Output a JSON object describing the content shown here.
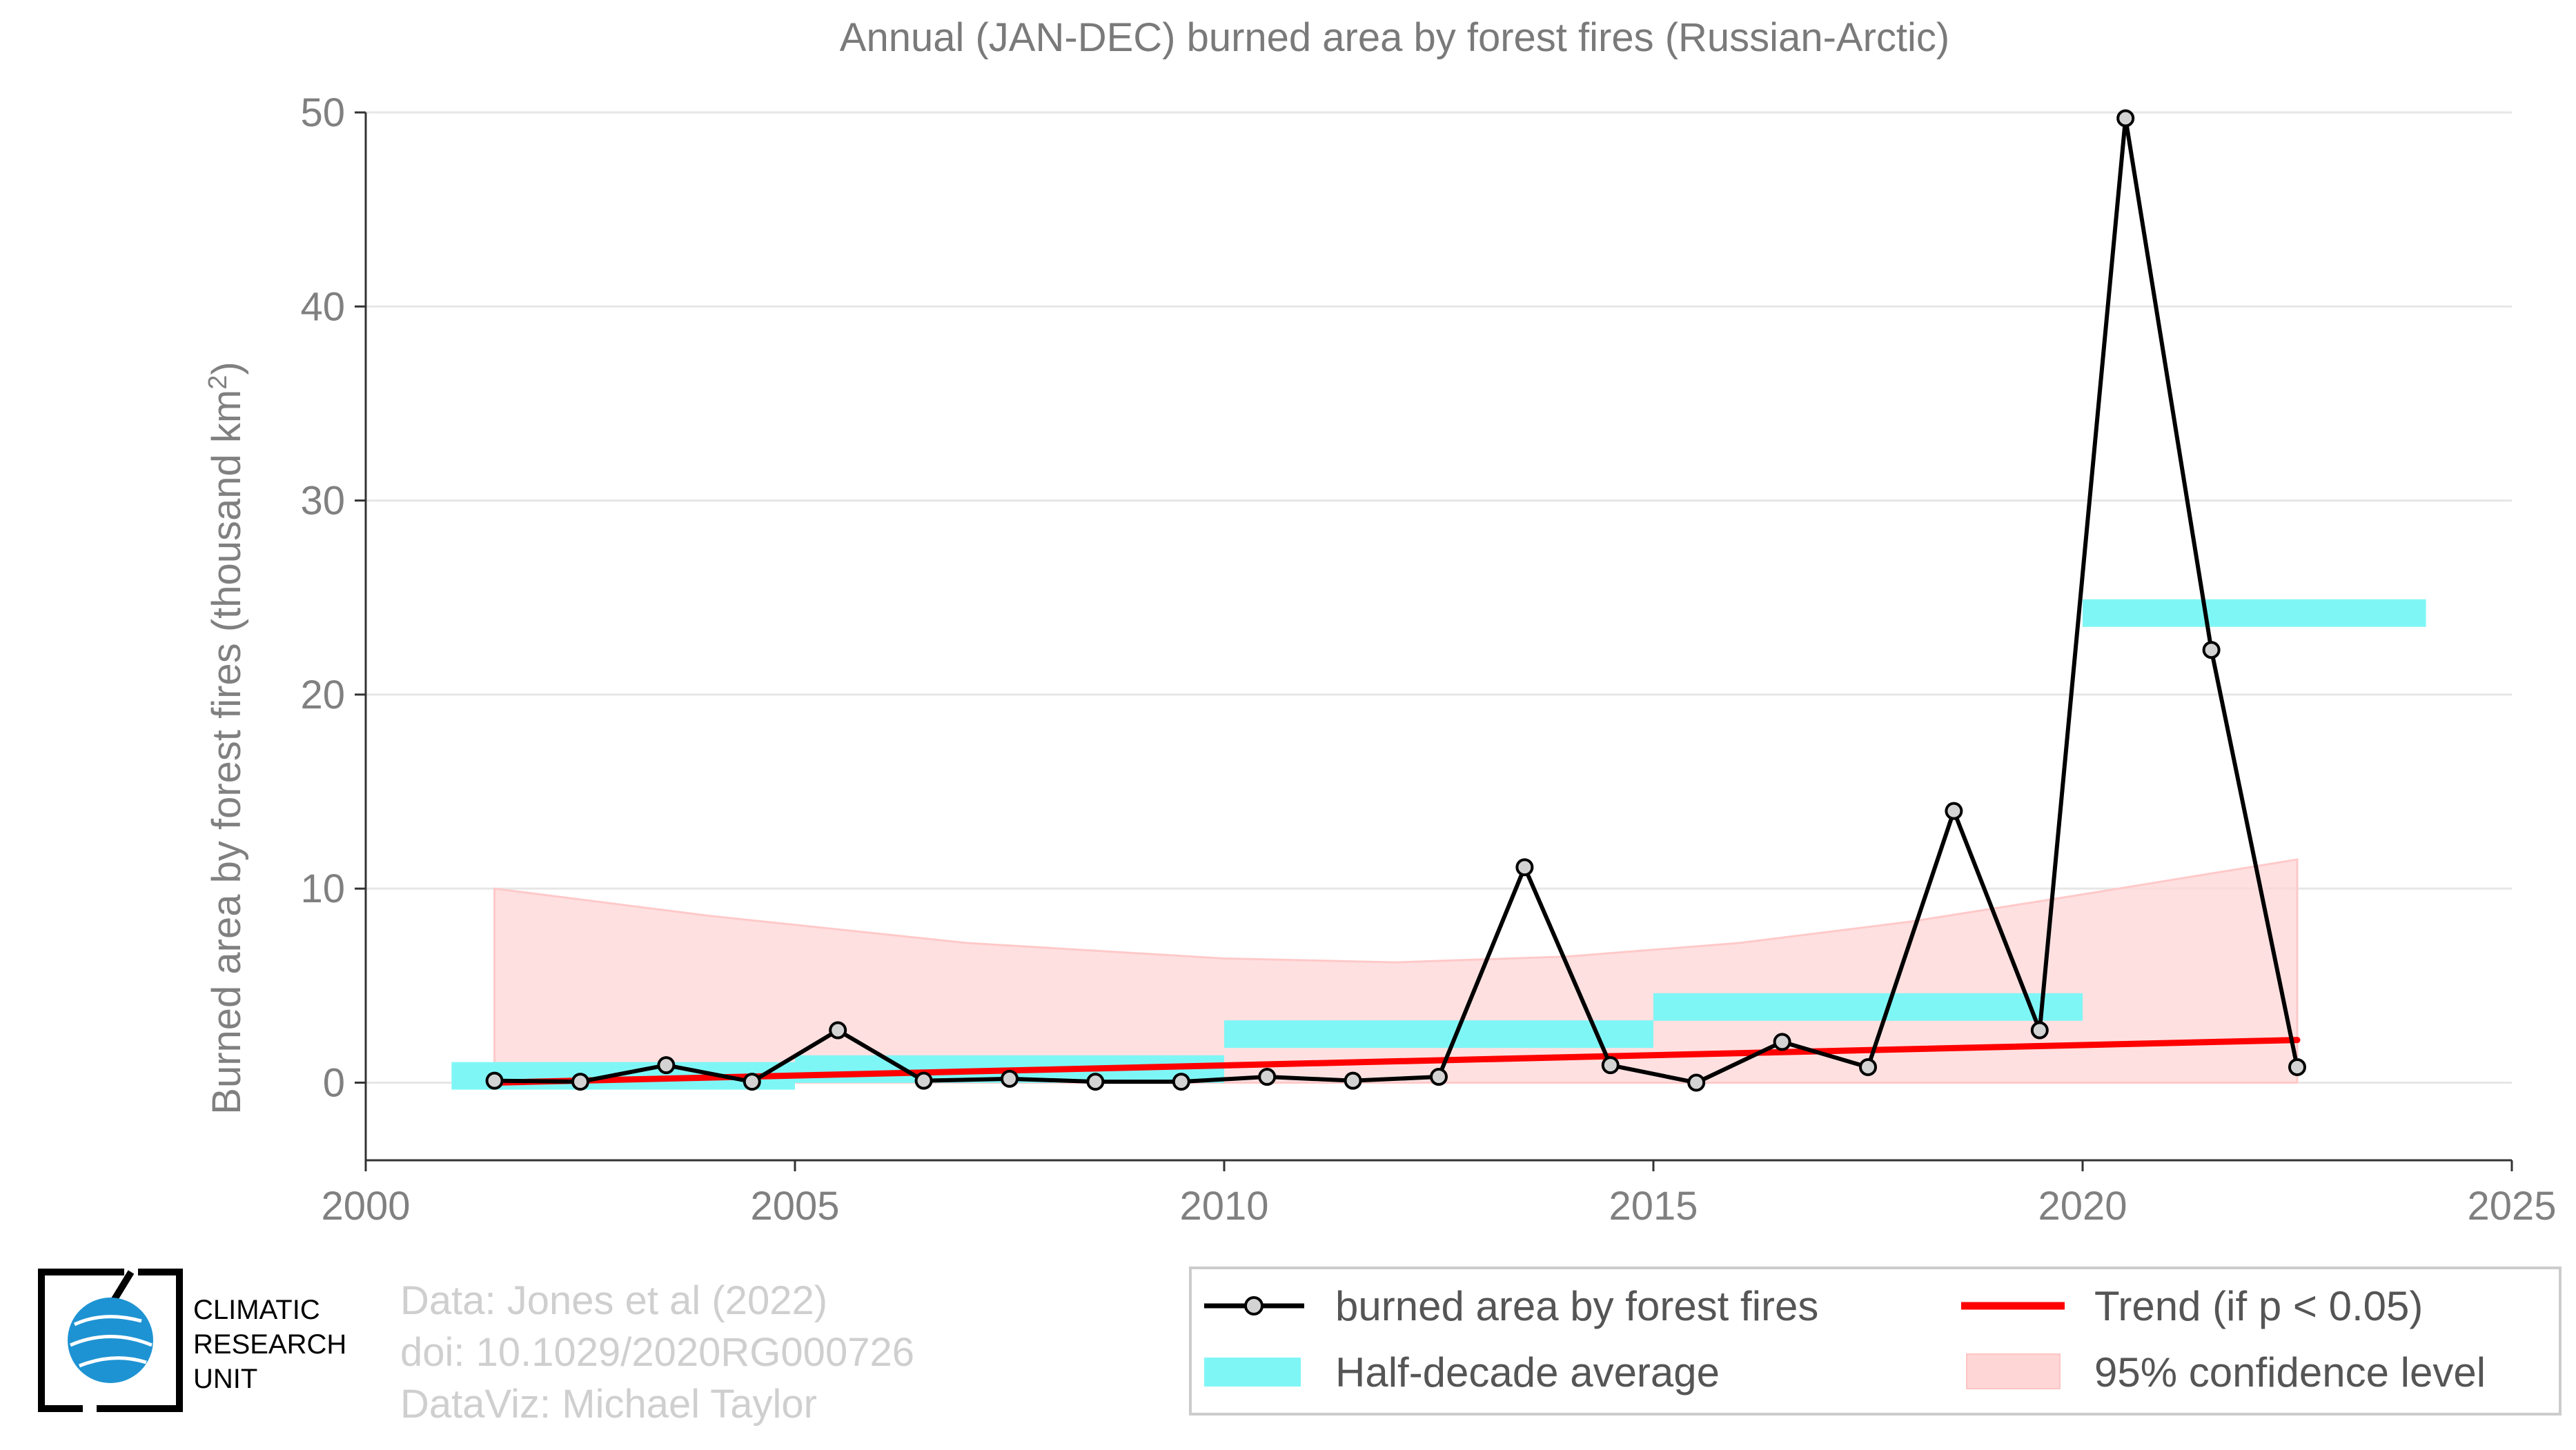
{
  "chart_data": {
    "type": "line",
    "title": "Annual (JAN-DEC) burned area by forest fires (Russian-Arctic)",
    "ylabel": "Burned area by forest fires (thousand km",
    "ylabel_sup": "2",
    "ylabel_close": ")",
    "xlabel": "",
    "xlim": [
      2000,
      2025
    ],
    "ylim": [
      -4,
      50
    ],
    "x_ticks": [
      "2000",
      "2005",
      "2010",
      "2015",
      "2020",
      "2025"
    ],
    "y_ticks": [
      "0",
      "10",
      "20",
      "30",
      "40",
      "50"
    ],
    "grid": true,
    "legend_position": "bottom-right",
    "series": [
      {
        "name": "burned area by forest fires",
        "x": [
          2001.5,
          2002.5,
          2003.5,
          2004.5,
          2005.5,
          2006.5,
          2007.5,
          2008.5,
          2009.5,
          2010.5,
          2011.5,
          2012.5,
          2013.5,
          2014.5,
          2015.5,
          2016.5,
          2017.5,
          2018.5,
          2019.5,
          2020.5,
          2021.5,
          2022.5
        ],
        "y": [
          0.1,
          0.05,
          0.9,
          0.05,
          2.7,
          0.1,
          0.2,
          0.05,
          0.05,
          0.3,
          0.1,
          0.3,
          11.1,
          0.9,
          0.0,
          2.1,
          0.8,
          14.0,
          2.7,
          49.7,
          22.3,
          0.8
        ]
      },
      {
        "name": "Half-decade average",
        "segments": [
          {
            "x0": 2001,
            "x1": 2005,
            "y": 0.35
          },
          {
            "x0": 2005,
            "x1": 2010,
            "y": 0.7
          },
          {
            "x0": 2010,
            "x1": 2015,
            "y": 2.5
          },
          {
            "x0": 2015,
            "x1": 2020,
            "y": 3.9
          },
          {
            "x0": 2020,
            "x1": 2024,
            "y": 24.2
          }
        ]
      },
      {
        "name": "Trend (if p < 0.05)",
        "x": [
          2001.5,
          2022.5
        ],
        "y": [
          0.0,
          2.2
        ]
      },
      {
        "name": "95% confidence level",
        "x": [
          2001.5,
          2004,
          2007,
          2010,
          2012,
          2014,
          2016,
          2018,
          2020,
          2022.5
        ],
        "upper": [
          10.0,
          8.6,
          7.2,
          6.4,
          6.2,
          6.5,
          7.2,
          8.3,
          9.7,
          11.5
        ],
        "lower": [
          0,
          0,
          0,
          0,
          0,
          0,
          0,
          0,
          0,
          0
        ]
      }
    ],
    "colors": {
      "line": "#000000",
      "marker_fill": "#d3d3d3",
      "half_decade": "#7ff6f6",
      "trend": "#ff0000",
      "confidence": "#ffd6d6",
      "grid": "#e6e6e6"
    },
    "credits": [
      "Data: Jones et al (2022)",
      "doi: 10.1029/2020RG000726",
      "DataViz: Michael Taylor"
    ],
    "logo": [
      "CLIMATIC",
      "RESEARCH",
      "UNIT"
    ]
  }
}
